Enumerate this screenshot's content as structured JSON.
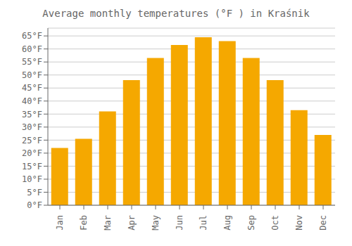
{
  "chart_data": {
    "type": "bar",
    "title": "Average monthly temperatures (°F ) in Kraśnik",
    "categories": [
      "Jan",
      "Feb",
      "Mar",
      "Apr",
      "May",
      "Jun",
      "Jul",
      "Aug",
      "Sep",
      "Oct",
      "Nov",
      "Dec"
    ],
    "values": [
      22,
      25.5,
      36,
      48,
      56.5,
      61.5,
      64.5,
      63,
      56.5,
      48,
      36.5,
      27
    ],
    "color": "#F5A800",
    "ylim": [
      0,
      68
    ],
    "yticks": [
      {
        "value": 0,
        "label": "0°F"
      },
      {
        "value": 5,
        "label": "5°F"
      },
      {
        "value": 10,
        "label": "10°F"
      },
      {
        "value": 15,
        "label": "15°F"
      },
      {
        "value": 20,
        "label": "20°F"
      },
      {
        "value": 25,
        "label": "25°F"
      },
      {
        "value": 30,
        "label": "30°F"
      },
      {
        "value": 35,
        "label": "35°F"
      },
      {
        "value": 40,
        "label": "40°F"
      },
      {
        "value": 45,
        "label": "45°F"
      },
      {
        "value": 50,
        "label": "50°F"
      },
      {
        "value": 55,
        "label": "55°F"
      },
      {
        "value": 60,
        "label": "60°F"
      },
      {
        "value": 65,
        "label": "65°F"
      }
    ],
    "grid": true
  }
}
